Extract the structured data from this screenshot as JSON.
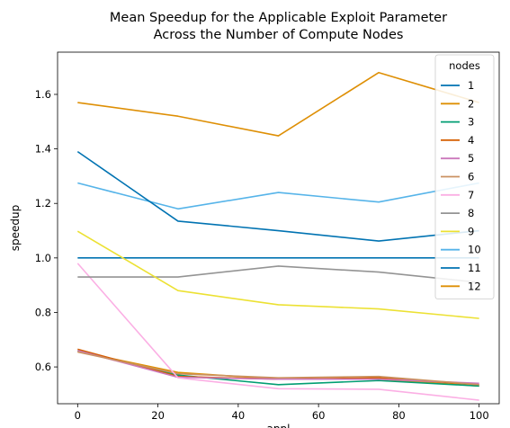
{
  "chart_data": {
    "type": "line",
    "title": "Mean Speedup for the Applicable Exploit Parameter\nAcross the Number of Compute Nodes",
    "xlabel": "appl",
    "ylabel": "speedup",
    "xlim": [
      -5,
      105
    ],
    "ylim": [
      0.465,
      1.755
    ],
    "xticks": [
      0,
      20,
      40,
      60,
      80,
      100
    ],
    "yticks": [
      0.6,
      0.8,
      1.0,
      1.2,
      1.4,
      1.6
    ],
    "xtick_labels": [
      "0",
      "20",
      "40",
      "60",
      "80",
      "100"
    ],
    "ytick_labels": [
      "0.6",
      "0.8",
      "1.0",
      "1.2",
      "1.4",
      "1.6"
    ],
    "grid": false,
    "legend": {
      "title": "nodes",
      "placement": "top-right"
    },
    "x": [
      0,
      25,
      50,
      75,
      100
    ],
    "series": [
      {
        "name": "1",
        "color": "#0173b2",
        "values": [
          1.0,
          1.0,
          1.0,
          1.0,
          1.0
        ]
      },
      {
        "name": "2",
        "color": "#de8f05",
        "values": [
          0.657,
          0.58,
          0.555,
          0.555,
          0.53
        ]
      },
      {
        "name": "3",
        "color": "#029e73",
        "values": [
          0.66,
          0.57,
          0.535,
          0.55,
          0.53
        ]
      },
      {
        "name": "4",
        "color": "#d55e00",
        "values": [
          0.665,
          0.565,
          0.555,
          0.56,
          0.535
        ]
      },
      {
        "name": "5",
        "color": "#cc78bc",
        "values": [
          0.66,
          0.562,
          0.555,
          0.555,
          0.54
        ]
      },
      {
        "name": "6",
        "color": "#ca9161",
        "values": [
          0.655,
          0.575,
          0.56,
          0.565,
          0.535
        ]
      },
      {
        "name": "7",
        "color": "#fbafe4",
        "values": [
          0.98,
          0.56,
          0.52,
          0.518,
          0.478
        ]
      },
      {
        "name": "8",
        "color": "#949494",
        "values": [
          0.93,
          0.93,
          0.97,
          0.948,
          0.91
        ]
      },
      {
        "name": "9",
        "color": "#ece133",
        "values": [
          1.098,
          0.88,
          0.828,
          0.813,
          0.778
        ]
      },
      {
        "name": "10",
        "color": "#56b4e9",
        "values": [
          1.275,
          1.18,
          1.24,
          1.205,
          1.275
        ]
      },
      {
        "name": "11",
        "color": "#0173b2",
        "values": [
          1.39,
          1.135,
          1.1,
          1.062,
          1.1
        ]
      },
      {
        "name": "12",
        "color": "#de8f05",
        "values": [
          1.57,
          1.52,
          1.448,
          1.68,
          1.57
        ]
      }
    ]
  }
}
